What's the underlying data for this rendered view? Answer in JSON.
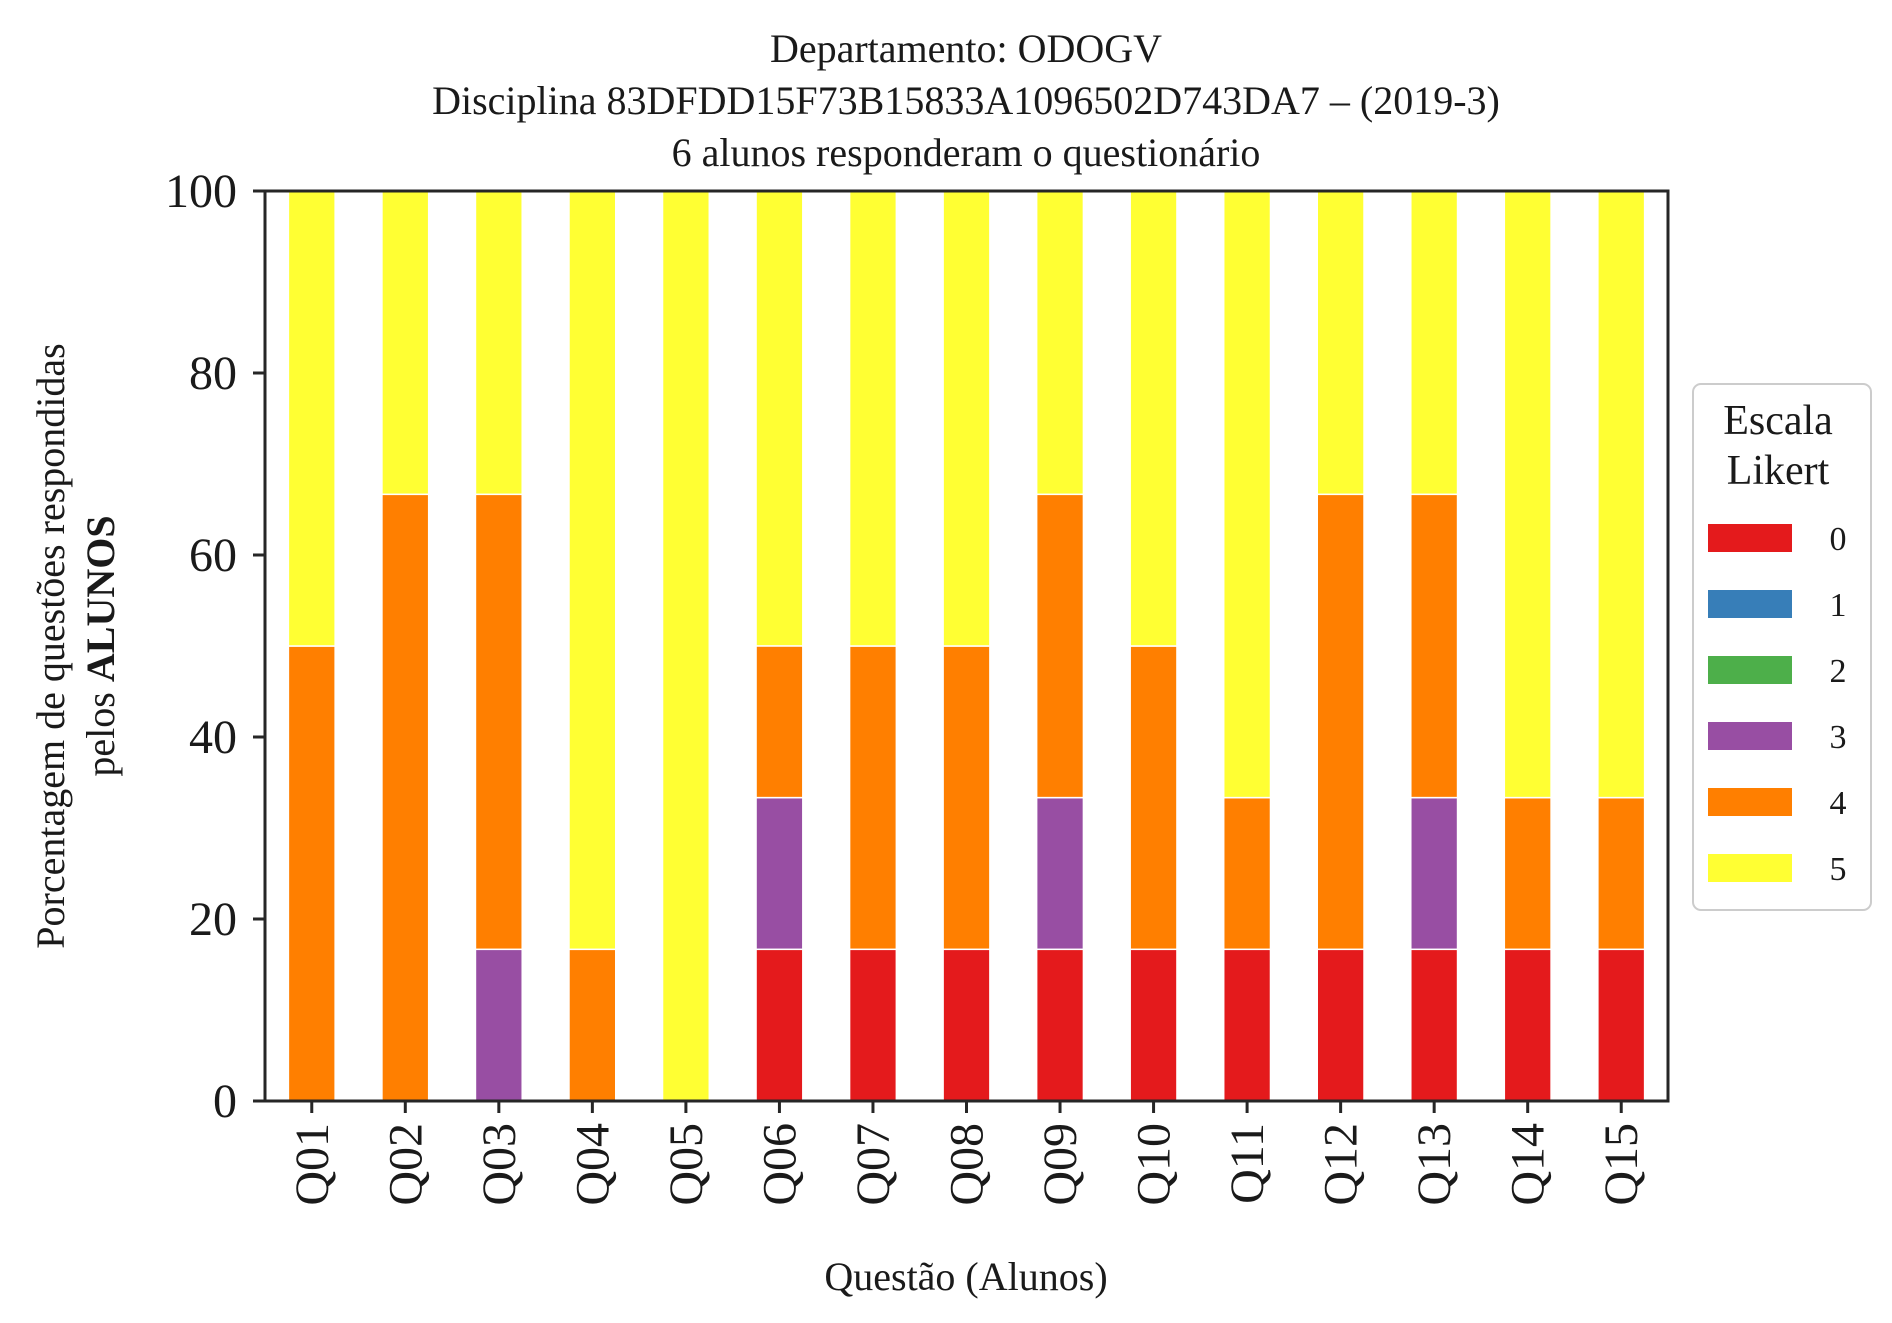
{
  "chart_data": {
    "type": "bar",
    "stacked": true,
    "title": [
      "Departamento: ODOGV",
      "Disciplina 83DFDD15F73B15833A1096502D743DA7 – (2019-3)",
      "6 alunos responderam o questionário"
    ],
    "xlabel": "Questão (Alunos)",
    "ylabel": {
      "line1": "Porcentagem de questões respondidas",
      "line2_prefix": "pelos ",
      "line2_bold": "ALUNOS"
    },
    "ylim": [
      0,
      100
    ],
    "yticks": [
      "0",
      "20",
      "40",
      "60",
      "80",
      "100"
    ],
    "grid": false,
    "legend": {
      "title_line1": "Escala",
      "title_line2": "Likert",
      "placement": "right"
    },
    "categories": [
      "Q01",
      "Q02",
      "Q03",
      "Q04",
      "Q05",
      "Q06",
      "Q07",
      "Q08",
      "Q09",
      "Q10",
      "Q11",
      "Q12",
      "Q13",
      "Q14",
      "Q15"
    ],
    "series": [
      {
        "name": "0",
        "color": "#e41a1c",
        "values": [
          0,
          0,
          0,
          0,
          0,
          16.67,
          16.67,
          16.67,
          16.67,
          16.67,
          16.67,
          16.67,
          16.67,
          16.67,
          16.67
        ]
      },
      {
        "name": "1",
        "color": "#377eb8",
        "values": [
          0,
          0,
          0,
          0,
          0,
          0,
          0,
          0,
          0,
          0,
          0,
          0,
          0,
          0,
          0
        ]
      },
      {
        "name": "2",
        "color": "#4daf4a",
        "values": [
          0,
          0,
          0,
          0,
          0,
          0,
          0,
          0,
          0,
          0,
          0,
          0,
          0,
          0,
          0
        ]
      },
      {
        "name": "3",
        "color": "#984ea3",
        "values": [
          0,
          0,
          16.67,
          0,
          0,
          16.67,
          0,
          0,
          16.67,
          0,
          0,
          0,
          16.67,
          0,
          0
        ]
      },
      {
        "name": "4",
        "color": "#ff7f00",
        "values": [
          50,
          66.67,
          50,
          16.67,
          0,
          16.67,
          33.33,
          33.33,
          33.33,
          33.33,
          16.67,
          50,
          33.33,
          16.67,
          16.67
        ]
      },
      {
        "name": "5",
        "color": "#ffff33",
        "values": [
          50,
          33.33,
          33.33,
          83.33,
          100,
          50,
          50,
          50,
          33.33,
          50,
          66.67,
          33.33,
          33.33,
          66.67,
          66.67
        ]
      }
    ]
  }
}
